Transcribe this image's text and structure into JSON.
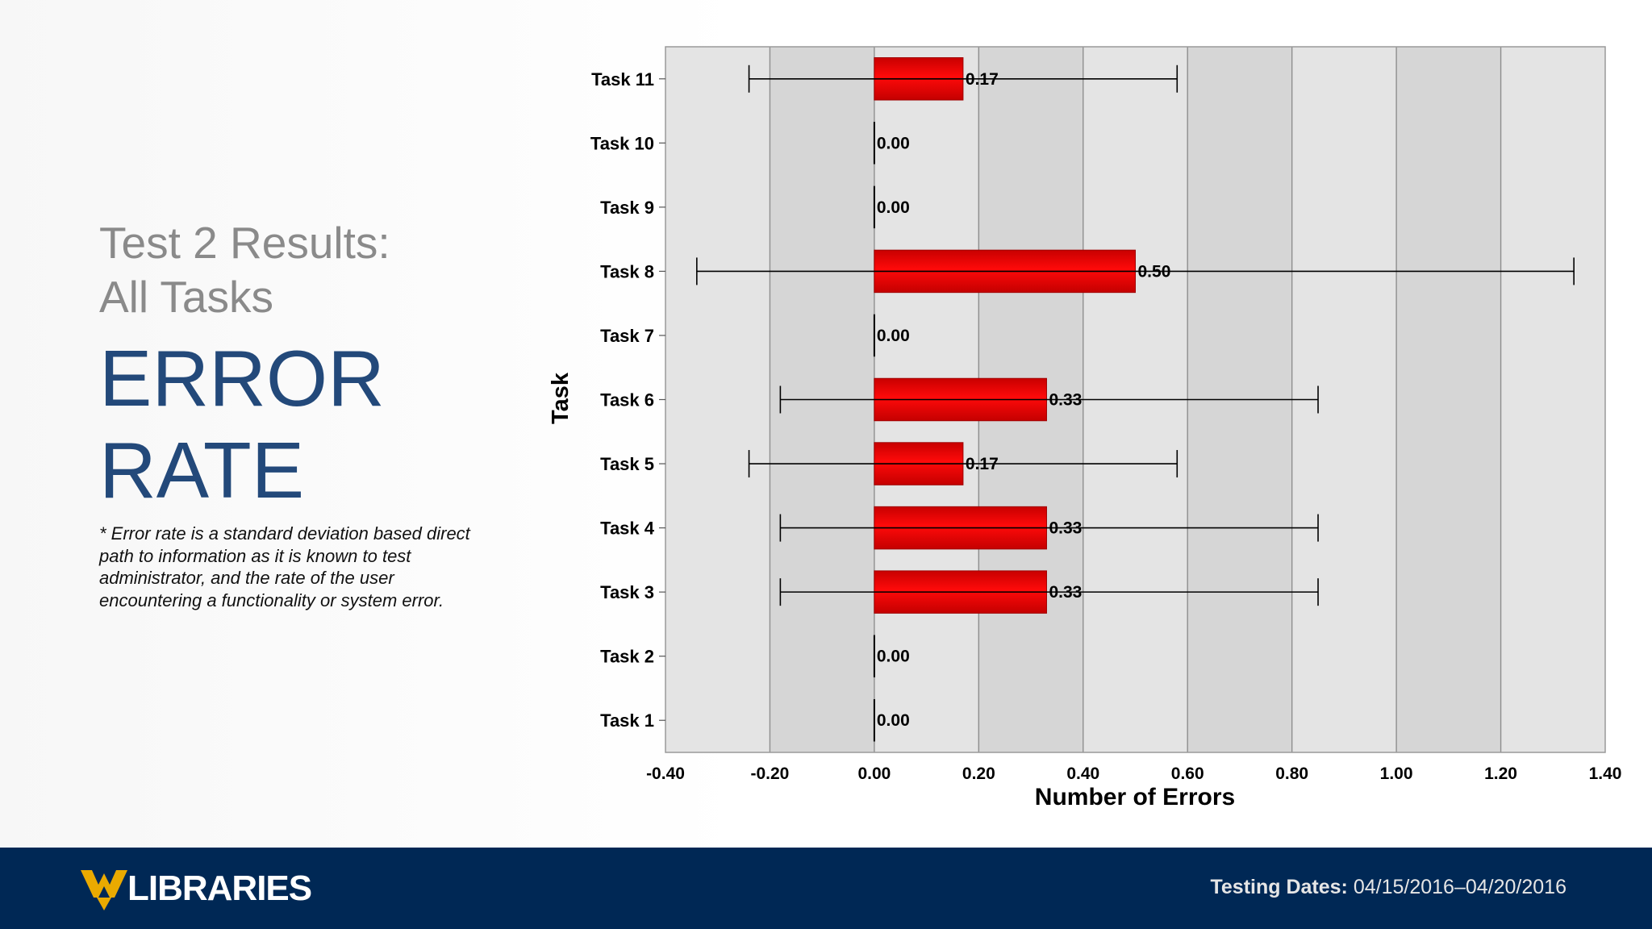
{
  "slide": {
    "subtitle_line1": "Test 2 Results:",
    "subtitle_line2": "All Tasks",
    "title_line1": "ERROR",
    "title_line2": "RATE",
    "footnote": "* Error rate is a standard deviation based direct path to information as it is known to test administrator, and the rate of the user encountering a functionality or system error."
  },
  "footer": {
    "logo_text": "LIBRARIES",
    "testing_label": "Testing Dates:",
    "testing_value": "04/15/2016–04/20/2016"
  },
  "colors": {
    "footer_bg": "#002855",
    "title_blue": "#23497a",
    "bar_red": "#e00000",
    "logo_gold": "#EAAA00"
  },
  "chart_data": {
    "type": "bar",
    "orientation": "horizontal",
    "ylabel": "Task",
    "xlabel": "Number of Errors",
    "xlim": [
      -0.4,
      1.4
    ],
    "x_ticks": [
      "-0.40",
      "-0.20",
      "0.00",
      "0.20",
      "0.40",
      "0.60",
      "0.80",
      "1.00",
      "1.20",
      "1.40"
    ],
    "categories": [
      "Task 11",
      "Task 10",
      "Task 9",
      "Task 8",
      "Task 7",
      "Task 6",
      "Task 5",
      "Task 4",
      "Task 3",
      "Task 2",
      "Task 1"
    ],
    "values": [
      0.17,
      0.0,
      0.0,
      0.5,
      0.0,
      0.33,
      0.17,
      0.33,
      0.33,
      0.0,
      0.0
    ],
    "value_labels": [
      "0.17",
      "0.00",
      "0.00",
      "0.50",
      "0.00",
      "0.33",
      "0.17",
      "0.33",
      "0.33",
      "0.00",
      "0.00"
    ],
    "error_low": [
      -0.24,
      null,
      null,
      -0.34,
      null,
      -0.18,
      -0.24,
      -0.18,
      -0.18,
      null,
      null
    ],
    "error_high": [
      0.58,
      null,
      null,
      1.34,
      null,
      0.85,
      0.58,
      0.85,
      0.85,
      null,
      null
    ],
    "grid": true,
    "legend": "none"
  }
}
